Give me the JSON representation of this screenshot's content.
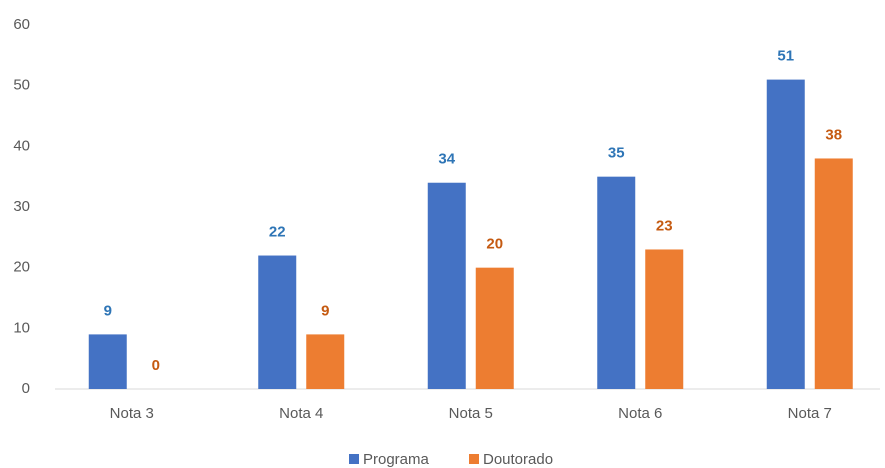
{
  "chart_data": {
    "type": "bar",
    "categories": [
      "Nota 3",
      "Nota 4",
      "Nota 5",
      "Nota 6",
      "Nota 7"
    ],
    "series": [
      {
        "name": "Programa",
        "color": "#4472c4",
        "label_color": "#2e75b6",
        "values": [
          9,
          22,
          34,
          35,
          51
        ]
      },
      {
        "name": "Doutorado",
        "color": "#ed7d31",
        "label_color": "#c55a11",
        "values": [
          0,
          9,
          20,
          23,
          38
        ]
      }
    ],
    "ylim": [
      0,
      60
    ],
    "yticks": [
      0,
      10,
      20,
      30,
      40,
      50,
      60
    ],
    "grid": false,
    "legend": "bottom"
  }
}
